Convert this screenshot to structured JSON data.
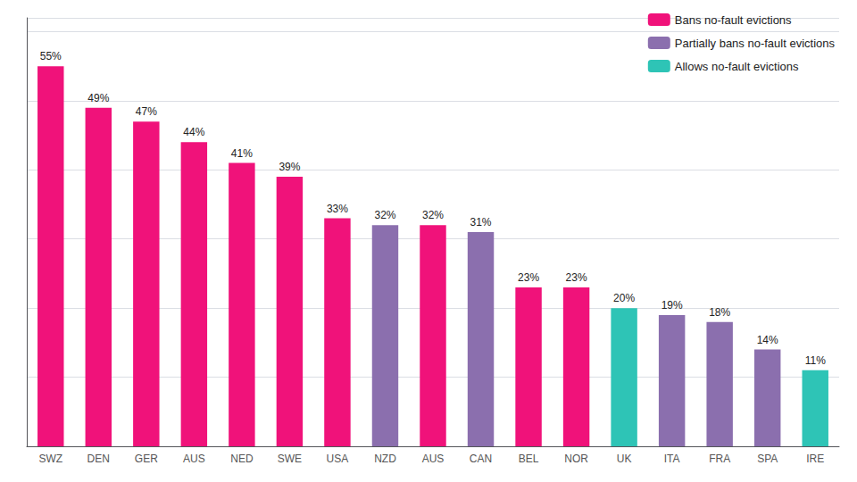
{
  "chart_data": {
    "type": "bar",
    "categories": [
      "SWZ",
      "DEN",
      "GER",
      "AUS",
      "NED",
      "SWE",
      "USA",
      "NZD",
      "AUS",
      "CAN",
      "BEL",
      "NOR",
      "UK",
      "ITA",
      "FRA",
      "SPA",
      "IRE"
    ],
    "series": [
      {
        "name": "Bans no-fault evictions",
        "color": "#f0127a",
        "values": [
          55,
          49,
          47,
          44,
          41,
          39,
          33,
          null,
          32,
          null,
          23,
          23,
          null,
          null,
          null,
          null,
          null
        ],
        "value_labels": [
          "55%",
          "49%",
          "47%",
          "44%",
          "41%",
          "39%",
          "33%",
          null,
          "32%",
          null,
          "23%",
          "23%",
          null,
          null,
          null,
          null,
          null
        ]
      },
      {
        "name": "Partially bans no-fault evictions",
        "color": "#8b6fae",
        "values": [
          null,
          null,
          null,
          null,
          null,
          null,
          null,
          32,
          null,
          31,
          null,
          null,
          null,
          19,
          18,
          14,
          null
        ],
        "value_labels": [
          null,
          null,
          null,
          null,
          null,
          null,
          null,
          "32%",
          null,
          "31%",
          null,
          null,
          null,
          "19%",
          "18%",
          "14%",
          null
        ]
      },
      {
        "name": "Allows no-fault evictions",
        "color": "#2ec4b6",
        "values": [
          null,
          null,
          null,
          null,
          null,
          null,
          null,
          null,
          null,
          null,
          null,
          null,
          20,
          null,
          null,
          null,
          11
        ],
        "value_labels": [
          null,
          null,
          null,
          null,
          null,
          null,
          null,
          null,
          null,
          null,
          null,
          null,
          "20%",
          null,
          null,
          null,
          "11%"
        ]
      }
    ],
    "ylim": [
      0,
      62
    ],
    "yticks": [
      0,
      10,
      20,
      30,
      40,
      50,
      60
    ],
    "grid": true,
    "tick_labels": "x",
    "legend": "upper right",
    "data_labels": true
  }
}
